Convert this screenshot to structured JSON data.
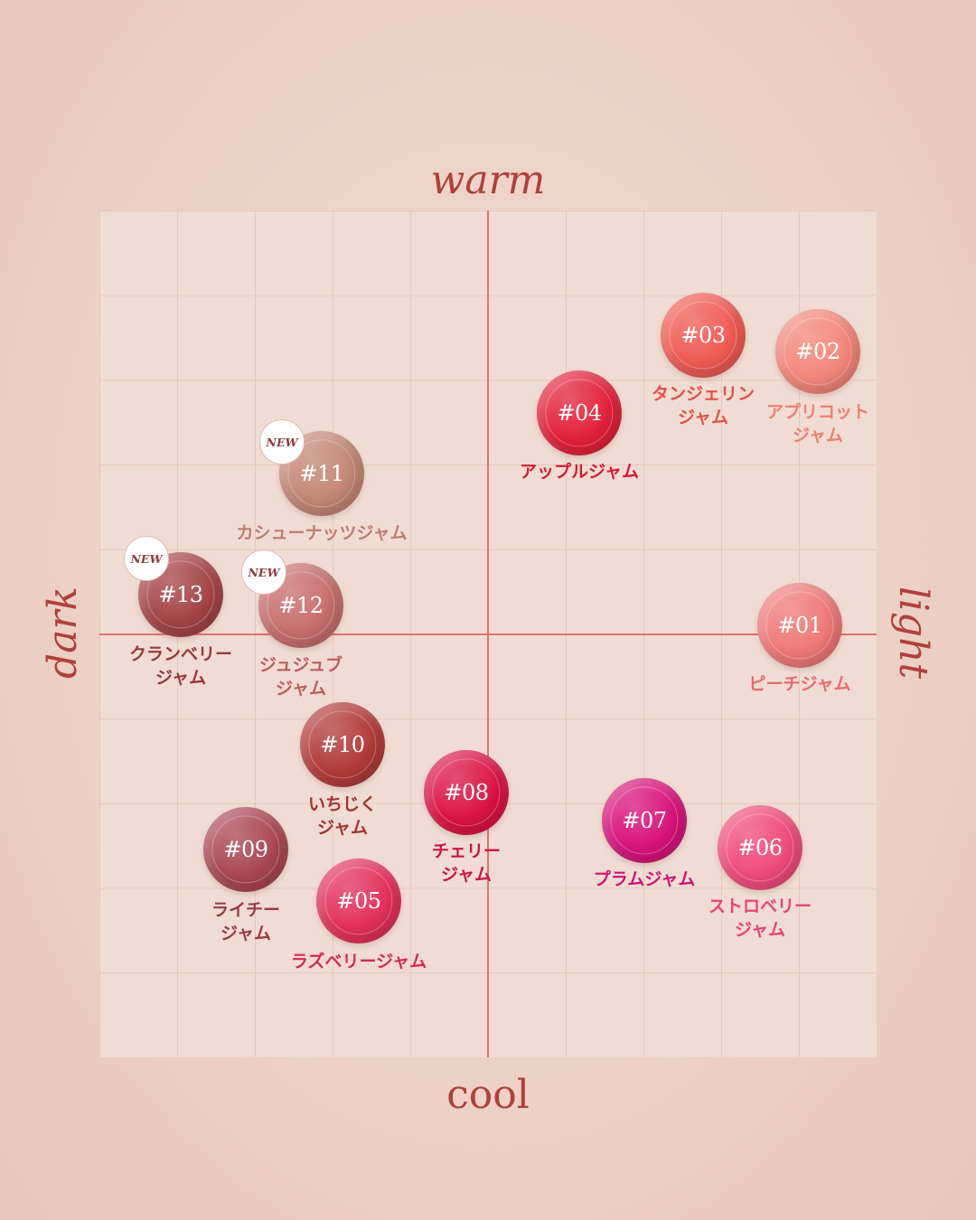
{
  "axes": {
    "top": "warm",
    "bottom": "cool",
    "left": "dark",
    "right": "light"
  },
  "new_badge": "NEW",
  "swatches": [
    {
      "id": "01",
      "label": "#01",
      "name": [
        "ピーチジャム"
      ],
      "color": "#ef7878",
      "text_color": "#e96a72",
      "is_new": false
    },
    {
      "id": "02",
      "label": "#02",
      "name": [
        "アプリコット",
        "ジャム"
      ],
      "color": "#f3867a",
      "text_color": "#ef7f72",
      "is_new": false
    },
    {
      "id": "03",
      "label": "#03",
      "name": [
        "タンジェリン",
        "ジャム"
      ],
      "color": "#ef5b52",
      "text_color": "#e2524a",
      "is_new": false
    },
    {
      "id": "04",
      "label": "#04",
      "name": [
        "アップルジャム"
      ],
      "color": "#e2203a",
      "text_color": "#d81a36",
      "is_new": false
    },
    {
      "id": "05",
      "label": "#05",
      "name": [
        "ラズベリージャム"
      ],
      "color": "#e23058",
      "text_color": "#d82a50",
      "is_new": false
    },
    {
      "id": "06",
      "label": "#06",
      "name": [
        "ストロベリー",
        "ジャム"
      ],
      "color": "#ef4b7a",
      "text_color": "#e84476",
      "is_new": false
    },
    {
      "id": "07",
      "label": "#07",
      "name": [
        "プラムジャム"
      ],
      "color": "#d8127a",
      "text_color": "#d0127a",
      "is_new": false
    },
    {
      "id": "08",
      "label": "#08",
      "name": [
        "チェリー",
        "ジャム"
      ],
      "color": "#db1342",
      "text_color": "#cf1440",
      "is_new": false
    },
    {
      "id": "09",
      "label": "#09",
      "name": [
        "ライチー",
        "ジャム"
      ],
      "color": "#a94650",
      "text_color": "#9a3a42",
      "is_new": false
    },
    {
      "id": "10",
      "label": "#10",
      "name": [
        "いちじく",
        "ジャム"
      ],
      "color": "#b23a3a",
      "text_color": "#a23434",
      "is_new": false
    },
    {
      "id": "11",
      "label": "#11",
      "name": [
        "カシューナッツジャム"
      ],
      "color": "#c38675",
      "text_color": "#bd7e72",
      "is_new": true
    },
    {
      "id": "12",
      "label": "#12",
      "name": [
        "ジュジュブ",
        "ジャム"
      ],
      "color": "#c66e6c",
      "text_color": "#b8605e",
      "is_new": true
    },
    {
      "id": "13",
      "label": "#13",
      "name": [
        "クランベリー",
        "ジャム"
      ],
      "color": "#a44446",
      "text_color": "#963a3c",
      "is_new": true
    }
  ]
}
